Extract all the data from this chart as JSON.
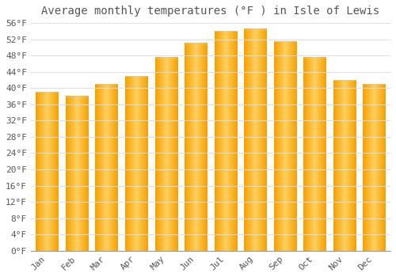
{
  "title": "Average monthly temperatures (°F ) in Isle of Lewis",
  "months": [
    "Jan",
    "Feb",
    "Mar",
    "Apr",
    "May",
    "Jun",
    "Jul",
    "Aug",
    "Sep",
    "Oct",
    "Nov",
    "Dec"
  ],
  "values": [
    39,
    38,
    41,
    43,
    47.5,
    51,
    54,
    54.5,
    51.5,
    47.5,
    42,
    41
  ],
  "bar_color_edge": "#F5A623",
  "bar_color_center": "#FFD966",
  "background_color": "#FFFFFF",
  "grid_color": "#DDDDDD",
  "text_color": "#555555",
  "ytick_min": 0,
  "ytick_max": 56,
  "ytick_step": 4,
  "title_fontsize": 10,
  "tick_fontsize": 8,
  "font_family": "monospace"
}
